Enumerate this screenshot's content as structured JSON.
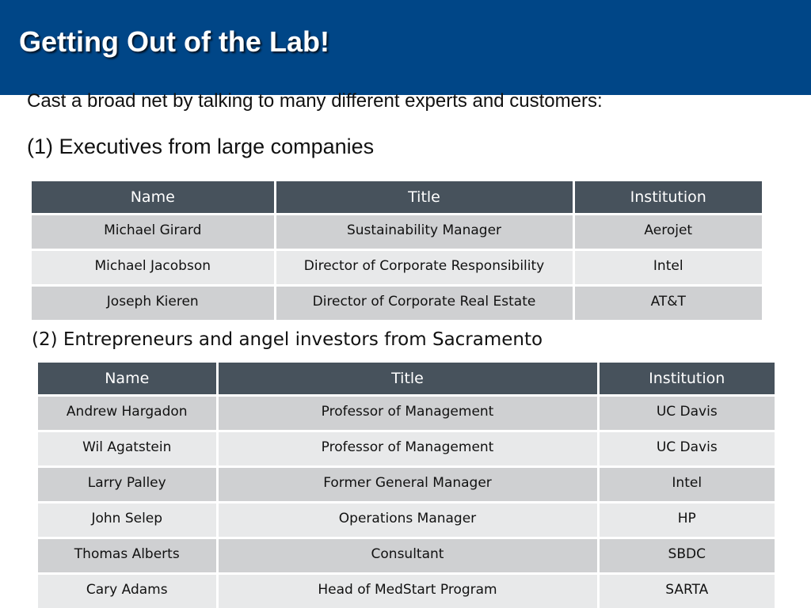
{
  "slide": {
    "title": "Getting Out of the Lab!",
    "intro": "Cast a broad net by talking to many different experts and customers:",
    "colors": {
      "title_bar": "#004687",
      "table_header": "#47525c",
      "row_dark": "#cfd0d2",
      "row_light": "#e8e9ea"
    }
  },
  "section1": {
    "heading": "(1) Executives from large companies",
    "table": {
      "headers": [
        "Name",
        "Title",
        "Institution"
      ],
      "rows": [
        [
          "Michael Girard",
          "Sustainability Manager",
          "Aerojet"
        ],
        [
          "Michael Jacobson",
          "Director of Corporate Responsibility",
          "Intel"
        ],
        [
          "Joseph Kieren",
          "Director of Corporate Real Estate",
          "AT&T"
        ]
      ]
    }
  },
  "section2": {
    "heading": "(2) Entrepreneurs and angel investors from Sacramento",
    "table": {
      "headers": [
        "Name",
        "Title",
        "Institution"
      ],
      "rows": [
        [
          "Andrew Hargadon",
          "Professor of Management",
          "UC Davis"
        ],
        [
          "Wil Agatstein",
          "Professor of Management",
          "UC Davis"
        ],
        [
          "Larry Palley",
          "Former General Manager",
          "Intel"
        ],
        [
          "John Selep",
          "Operations Manager",
          "HP"
        ],
        [
          "Thomas Alberts",
          "Consultant",
          "SBDC"
        ],
        [
          "Cary Adams",
          "Head of MedStart Program",
          "SARTA"
        ]
      ]
    }
  }
}
